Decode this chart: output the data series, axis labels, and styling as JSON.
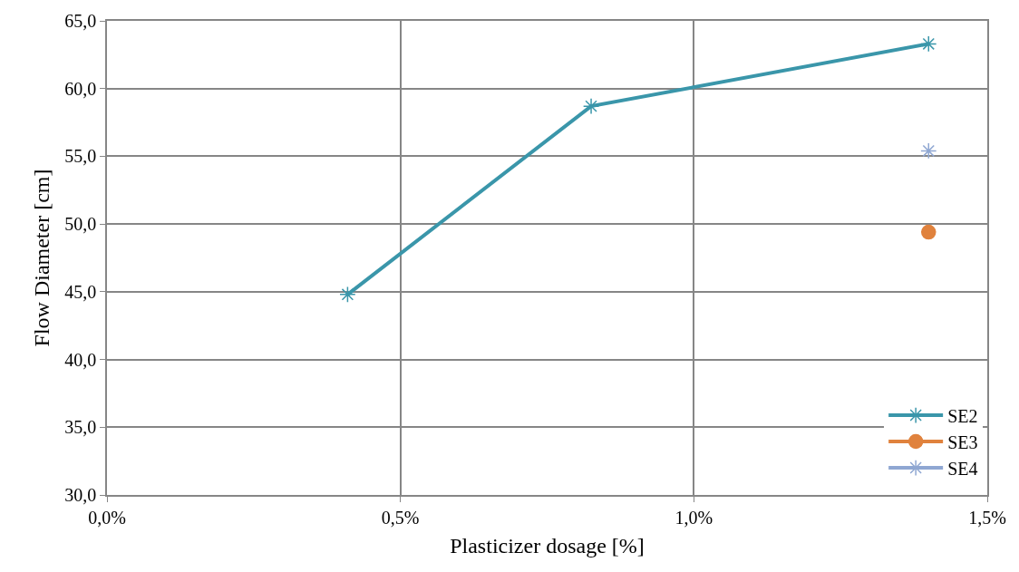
{
  "chart_data": {
    "type": "line",
    "xlabel": "Plasticizer dosage [%]",
    "ylabel": "Flow Diameter [cm]",
    "series": [
      {
        "name": "SE2",
        "color": "#3a96aa",
        "x": [
          0.41,
          0.825,
          1.4
        ],
        "values": [
          44.8,
          58.7,
          63.3
        ],
        "marker": "cross"
      },
      {
        "name": "SE3",
        "color": "#e0823d",
        "x": [
          1.4
        ],
        "values": [
          49.4
        ],
        "marker": "circle"
      },
      {
        "name": "SE4",
        "color": "#8fa7d2",
        "x": [
          1.4
        ],
        "values": [
          55.4
        ],
        "marker": "cross"
      }
    ],
    "xlim": [
      0,
      1.5
    ],
    "xticks": [
      {
        "value": 0,
        "label": "0,0%"
      },
      {
        "value": 0.5,
        "label": "0,5%"
      },
      {
        "value": 1,
        "label": "1,0%"
      },
      {
        "value": 1.5,
        "label": "1,5%"
      }
    ],
    "ylim": [
      30,
      65
    ],
    "yticks": [
      {
        "value": 30,
        "label": "30,0"
      },
      {
        "value": 35,
        "label": "35,0"
      },
      {
        "value": 40,
        "label": "40,0"
      },
      {
        "value": 45,
        "label": "45,0"
      },
      {
        "value": 50,
        "label": "50,0"
      },
      {
        "value": 55,
        "label": "55,0"
      },
      {
        "value": 60,
        "label": "60,0"
      },
      {
        "value": 65,
        "label": "65,0"
      }
    ],
    "grid": true,
    "legend": "bottom right",
    "line_style": "solid"
  }
}
